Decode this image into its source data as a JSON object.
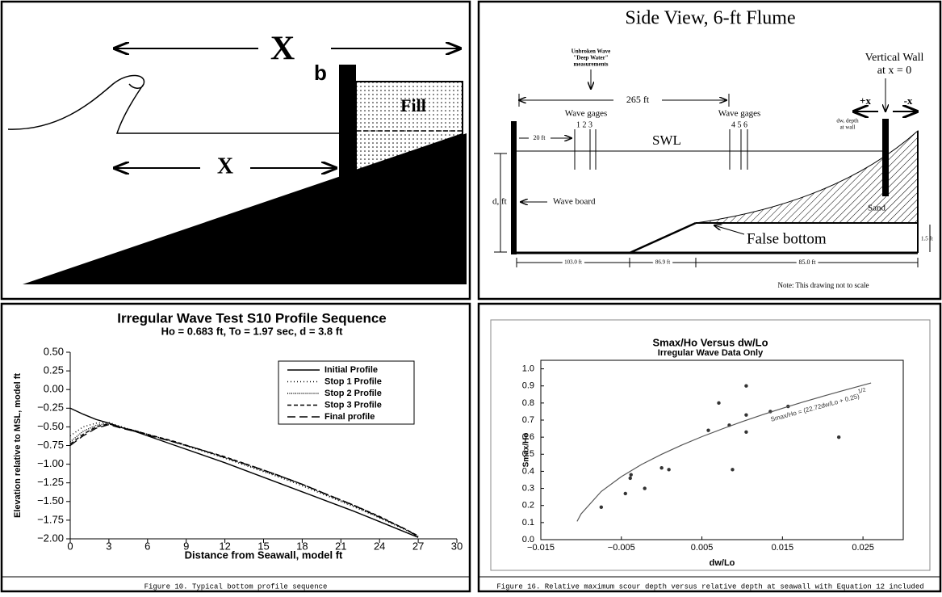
{
  "wall_diagram": {
    "labels": [
      "X",
      "b",
      "X",
      "Fill"
    ]
  },
  "flume": {
    "title": "Side View, 6-ft Flume",
    "unbroken": [
      "Unbroken Wave",
      "\"Deep Water\"",
      "measurements"
    ],
    "length": "265 ft",
    "gages_left": "Wave gages",
    "gages_left_nums": "1 2 3",
    "gages_right": "Wave gages",
    "gages_right_nums": "4 5 6",
    "wall": [
      "Vertical Wall",
      "at x = 0"
    ],
    "plus_x": "+x",
    "minus_x": "-x",
    "depth_wall": [
      "dw, depth",
      "at wall"
    ],
    "board_gap": "20 ft",
    "swl": "SWL",
    "depth": "d, ft",
    "board": "Wave board",
    "sand": "Sand",
    "false_bottom": "False bottom",
    "bottom_height": "1.5 ft",
    "seg1": "103.0 ft",
    "seg2": "86.9 ft",
    "seg3": "85.0 ft",
    "note": "Note:  This drawing not to scale"
  },
  "chart_data": [
    {
      "type": "line",
      "title": "Irregular Wave Test S10 Profile Sequence",
      "subtitle": "Ho = 0.683 ft, To = 1.97 sec, d = 3.8 ft",
      "x_label": "Distance from Seawall, model ft",
      "y_label": "Elevation relative to MSL, model ft",
      "caption": "Figure 10.  Typical bottom profile sequence",
      "x": [
        0,
        1,
        2,
        3,
        4,
        5,
        6,
        8,
        10,
        12,
        14,
        16,
        18,
        20,
        22,
        24,
        26,
        27
      ],
      "xlim": [
        0,
        30
      ],
      "xticks": [
        0,
        3,
        6,
        9,
        12,
        15,
        18,
        21,
        24,
        27,
        30
      ],
      "ylim": [
        -2,
        0.5
      ],
      "yticks": [
        {
          "value": 0.5,
          "label": "0.50"
        },
        {
          "value": 0.25,
          "label": "0.25"
        },
        {
          "value": 0,
          "label": "0.00"
        },
        {
          "value": -0.25,
          "label": "−0.25"
        },
        {
          "value": -0.5,
          "label": "−0.50"
        },
        {
          "value": -0.75,
          "label": "−0.75"
        },
        {
          "value": -1,
          "label": "−1.00"
        },
        {
          "value": -1.25,
          "label": "−1.25"
        },
        {
          "value": -1.5,
          "label": "−1.50"
        },
        {
          "value": -1.75,
          "label": "−1.75"
        },
        {
          "value": -2,
          "label": "−2.00"
        }
      ],
      "series": [
        {
          "name": "Initial Profile",
          "color": "#000",
          "dash": "none",
          "values": [
            -0.25,
            -0.33,
            -0.4,
            -0.45,
            -0.51,
            -0.56,
            -0.62,
            -0.74,
            -0.86,
            -0.98,
            -1.11,
            -1.24,
            -1.37,
            -1.5,
            -1.63,
            -1.77,
            -1.91,
            -1.98
          ]
        },
        {
          "name": "Stop 1 Profile",
          "color": "#000",
          "dash": "1 3",
          "values": [
            -0.62,
            -0.5,
            -0.45,
            -0.44,
            -0.5,
            -0.55,
            -0.6,
            -0.7,
            -0.81,
            -0.92,
            -1.04,
            -1.16,
            -1.29,
            -1.43,
            -1.57,
            -1.72,
            -1.88,
            -1.97
          ]
        },
        {
          "name": "Stop 2 Profile",
          "color": "#000",
          "dash": "1 1.5",
          "values": [
            -0.7,
            -0.56,
            -0.48,
            -0.45,
            -0.51,
            -0.55,
            -0.6,
            -0.7,
            -0.8,
            -0.91,
            -1.03,
            -1.15,
            -1.27,
            -1.42,
            -1.56,
            -1.71,
            -1.87,
            -1.97
          ]
        },
        {
          "name": "Stop 3 Profile",
          "color": "#000",
          "dash": "5 3",
          "values": [
            -0.73,
            -0.6,
            -0.5,
            -0.46,
            -0.51,
            -0.55,
            -0.6,
            -0.69,
            -0.8,
            -0.9,
            -1.02,
            -1.14,
            -1.27,
            -1.41,
            -1.55,
            -1.7,
            -1.87,
            -1.96
          ]
        },
        {
          "name": "Final profile",
          "color": "#000",
          "dash": "10 5",
          "values": [
            -0.75,
            -0.62,
            -0.52,
            -0.47,
            -0.52,
            -0.56,
            -0.61,
            -0.7,
            -0.8,
            -0.91,
            -1.02,
            -1.14,
            -1.27,
            -1.41,
            -1.55,
            -1.71,
            -1.87,
            -1.97
          ]
        }
      ]
    },
    {
      "type": "scatter",
      "title": "Smax/Ho Versus dw/Lo",
      "subtitle": "Irregular Wave Data Only",
      "x_label": "dw/Lo",
      "y_label": "Smax/Ho",
      "caption": "Figure 16.  Relative maximum scour depth versus relative depth at seawall with Equation 12 included",
      "annotation": {
        "text": "Smax/Ho = (22.72dw/Lo + 0.25)",
        "exponent": "1/2"
      },
      "xlim": [
        -0.015,
        0.03
      ],
      "xticks": [
        {
          "value": -0.015,
          "label": "−0.015"
        },
        {
          "value": -0.005,
          "label": "−0.005"
        },
        0.005,
        0.015,
        0.025
      ],
      "ylim": [
        0,
        1.05
      ],
      "yticks": [
        {
          "value": 0,
          "label": "0.0"
        },
        0.1,
        0.2,
        0.3,
        0.4,
        0.5,
        0.6,
        0.7,
        0.8,
        0.9,
        {
          "value": 1,
          "label": "1.0"
        }
      ],
      "series": [
        {
          "mode": "markers",
          "color": "#333",
          "x": [
            -0.0075,
            -0.0045,
            -0.0039,
            -0.0038,
            -0.0021,
            0,
            0.0009,
            0.0058,
            0.0071,
            0.0084,
            0.0088,
            0.0105,
            0.0105,
            0.0105,
            0.0135,
            0.0157,
            0.022
          ],
          "y": [
            0.19,
            0.27,
            0.36,
            0.38,
            0.3,
            0.42,
            0.41,
            0.64,
            0.8,
            0.67,
            0.41,
            0.9,
            0.73,
            0.63,
            0.75,
            0.78,
            0.6
          ]
        },
        {
          "mode": "line",
          "color": "#555",
          "x": [
            -0.0105,
            -0.01,
            -0.0075,
            -0.005,
            -0.0025,
            0,
            0.0025,
            0.005,
            0.0075,
            0.01,
            0.0125,
            0.015,
            0.0175,
            0.02,
            0.0225,
            0.026
          ],
          "y": [
            0.107,
            0.151,
            0.282,
            0.369,
            0.44,
            0.5,
            0.554,
            0.603,
            0.648,
            0.691,
            0.731,
            0.769,
            0.805,
            0.839,
            0.872,
            0.917
          ]
        }
      ]
    }
  ]
}
